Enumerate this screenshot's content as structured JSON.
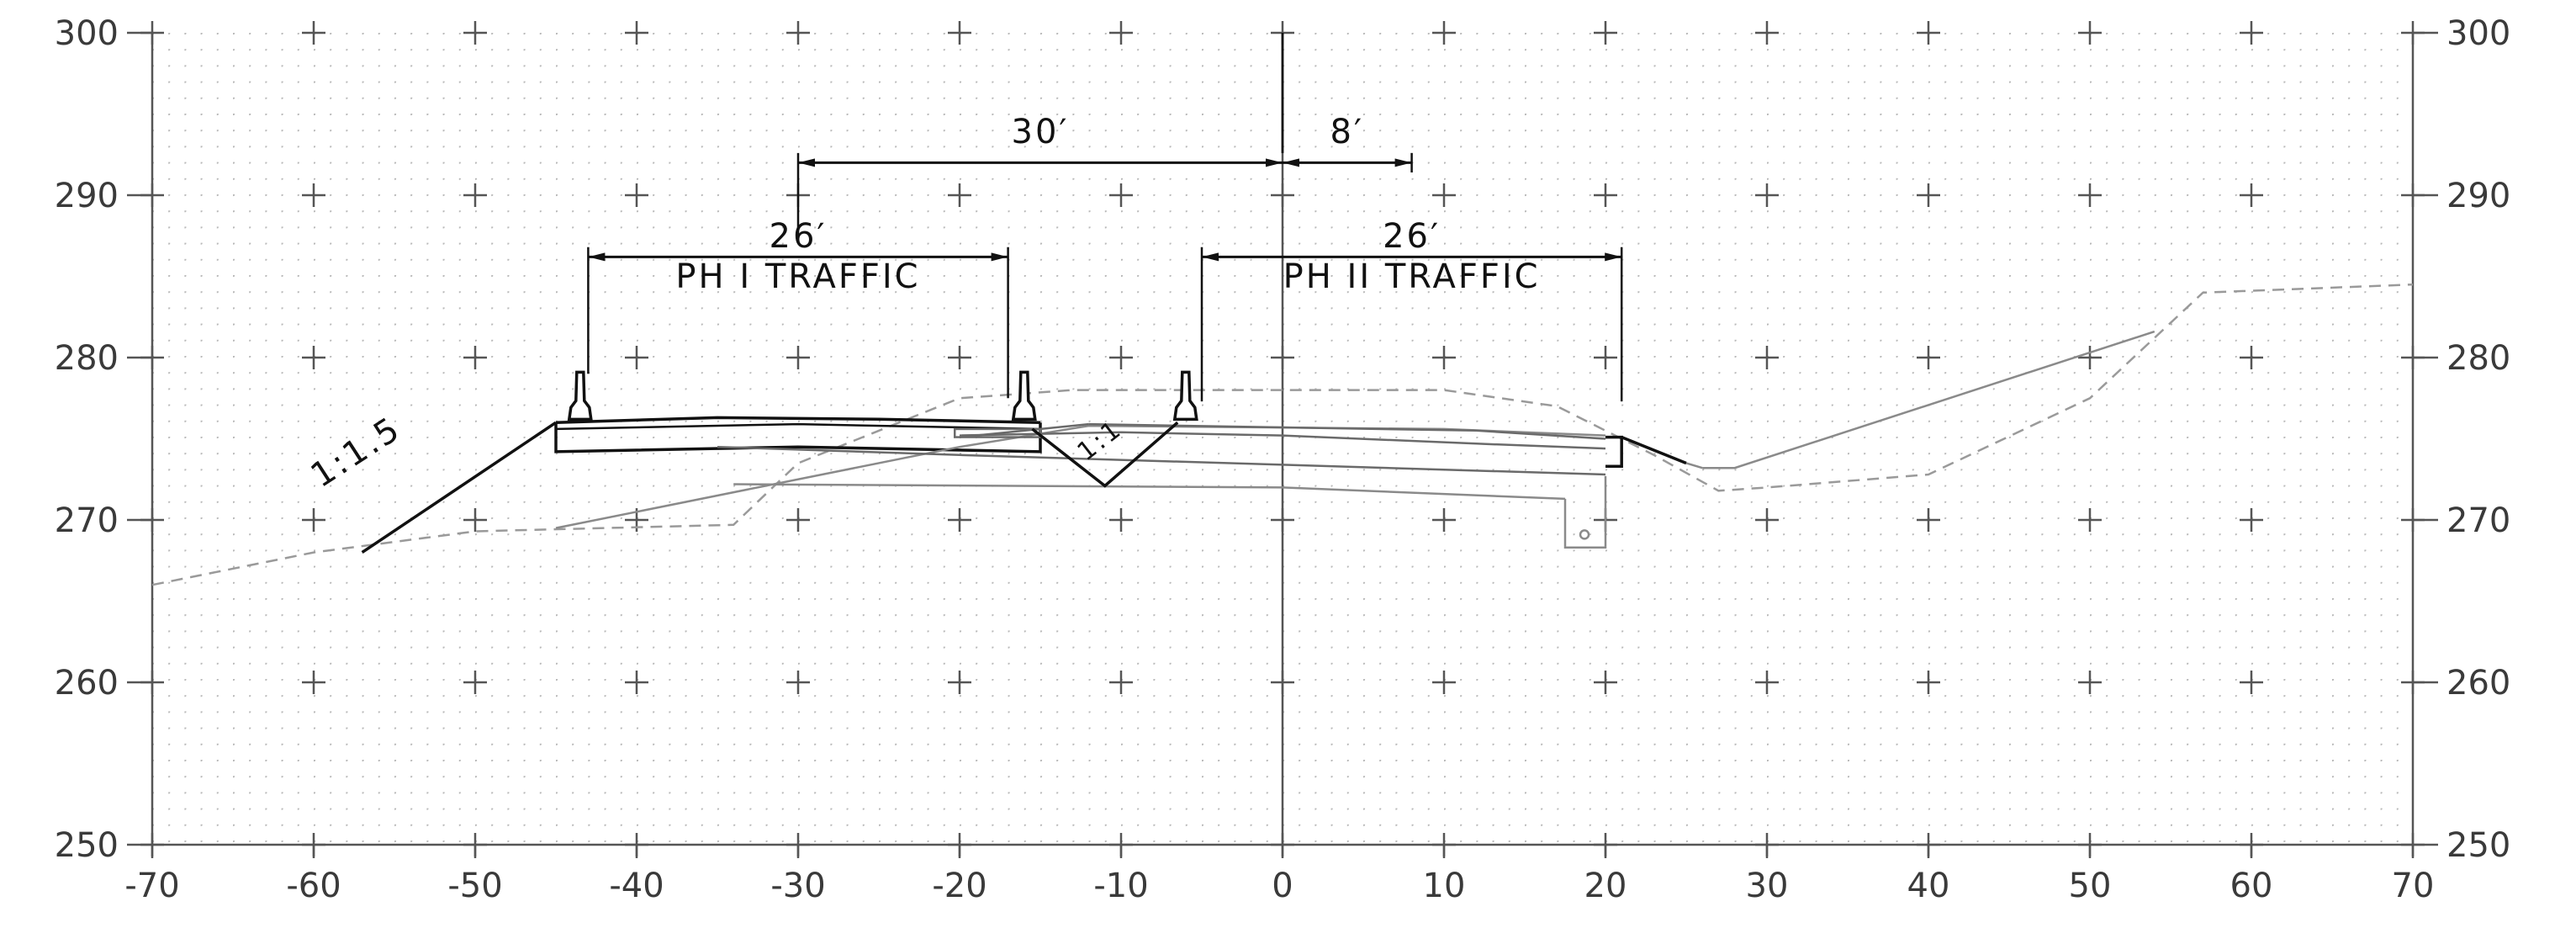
{
  "x_axis": {
    "ticks": [
      -70,
      -60,
      -50,
      -40,
      -30,
      -20,
      -10,
      0,
      10,
      20,
      30,
      40,
      50,
      60,
      70
    ],
    "tick_labels": [
      "-70",
      "-60",
      "-50",
      "-40",
      "-30",
      "-20",
      "-10",
      "0",
      "10",
      "20",
      "30",
      "40",
      "50",
      "60",
      "70"
    ]
  },
  "y_axis": {
    "ticks": [
      250,
      260,
      270,
      280,
      290,
      300
    ],
    "tick_labels": [
      "250",
      "260",
      "270",
      "280",
      "290",
      "300"
    ]
  },
  "dimensions": {
    "overall_left": {
      "label": "30′",
      "from": -30,
      "to": 0,
      "elev": 292
    },
    "overall_right": {
      "label": "8′",
      "from": 0,
      "to": 8,
      "elev": 292
    },
    "phase1": {
      "width_label": "26′",
      "lane_label": "PH I TRAFFIC",
      "from": -43,
      "to": -17,
      "elev": 286.2
    },
    "phase2": {
      "width_label": "26′",
      "lane_label": "PH II TRAFFIC",
      "from": -5,
      "to": 21,
      "elev": 286.2
    }
  },
  "slope_labels": {
    "fill_slope": "1:1.5",
    "median_slope": "1:1"
  },
  "colors": {
    "proposed": "#111111",
    "existing_ground": "#9a9a9a",
    "grid_dots": "#b8b8b8"
  },
  "chart_data": {
    "type": "diagram",
    "xlim": [
      -70,
      70
    ],
    "ylim": [
      250,
      300
    ],
    "existing_ground": [
      [
        -70,
        266
      ],
      [
        -60,
        268
      ],
      [
        -50,
        269.3
      ],
      [
        -34,
        269.7
      ],
      [
        -30,
        273.5
      ],
      [
        -20,
        277.5
      ],
      [
        -13,
        278
      ],
      [
        0,
        278
      ],
      [
        10,
        278
      ],
      [
        17,
        277
      ],
      [
        21,
        275
      ],
      [
        23,
        274
      ],
      [
        27,
        271.8
      ],
      [
        30,
        272
      ],
      [
        40,
        272.8
      ],
      [
        50,
        277.5
      ],
      [
        57,
        284
      ],
      [
        70,
        284.5
      ]
    ],
    "fill_slope_line": [
      [
        -57,
        268
      ],
      [
        -45,
        276
      ]
    ],
    "proposed_right_slope": [
      [
        26,
        273.2
      ],
      [
        28,
        273.2
      ],
      [
        54,
        281.6
      ]
    ],
    "barrier_stations": [
      -43.5,
      -16,
      -6
    ]
  }
}
